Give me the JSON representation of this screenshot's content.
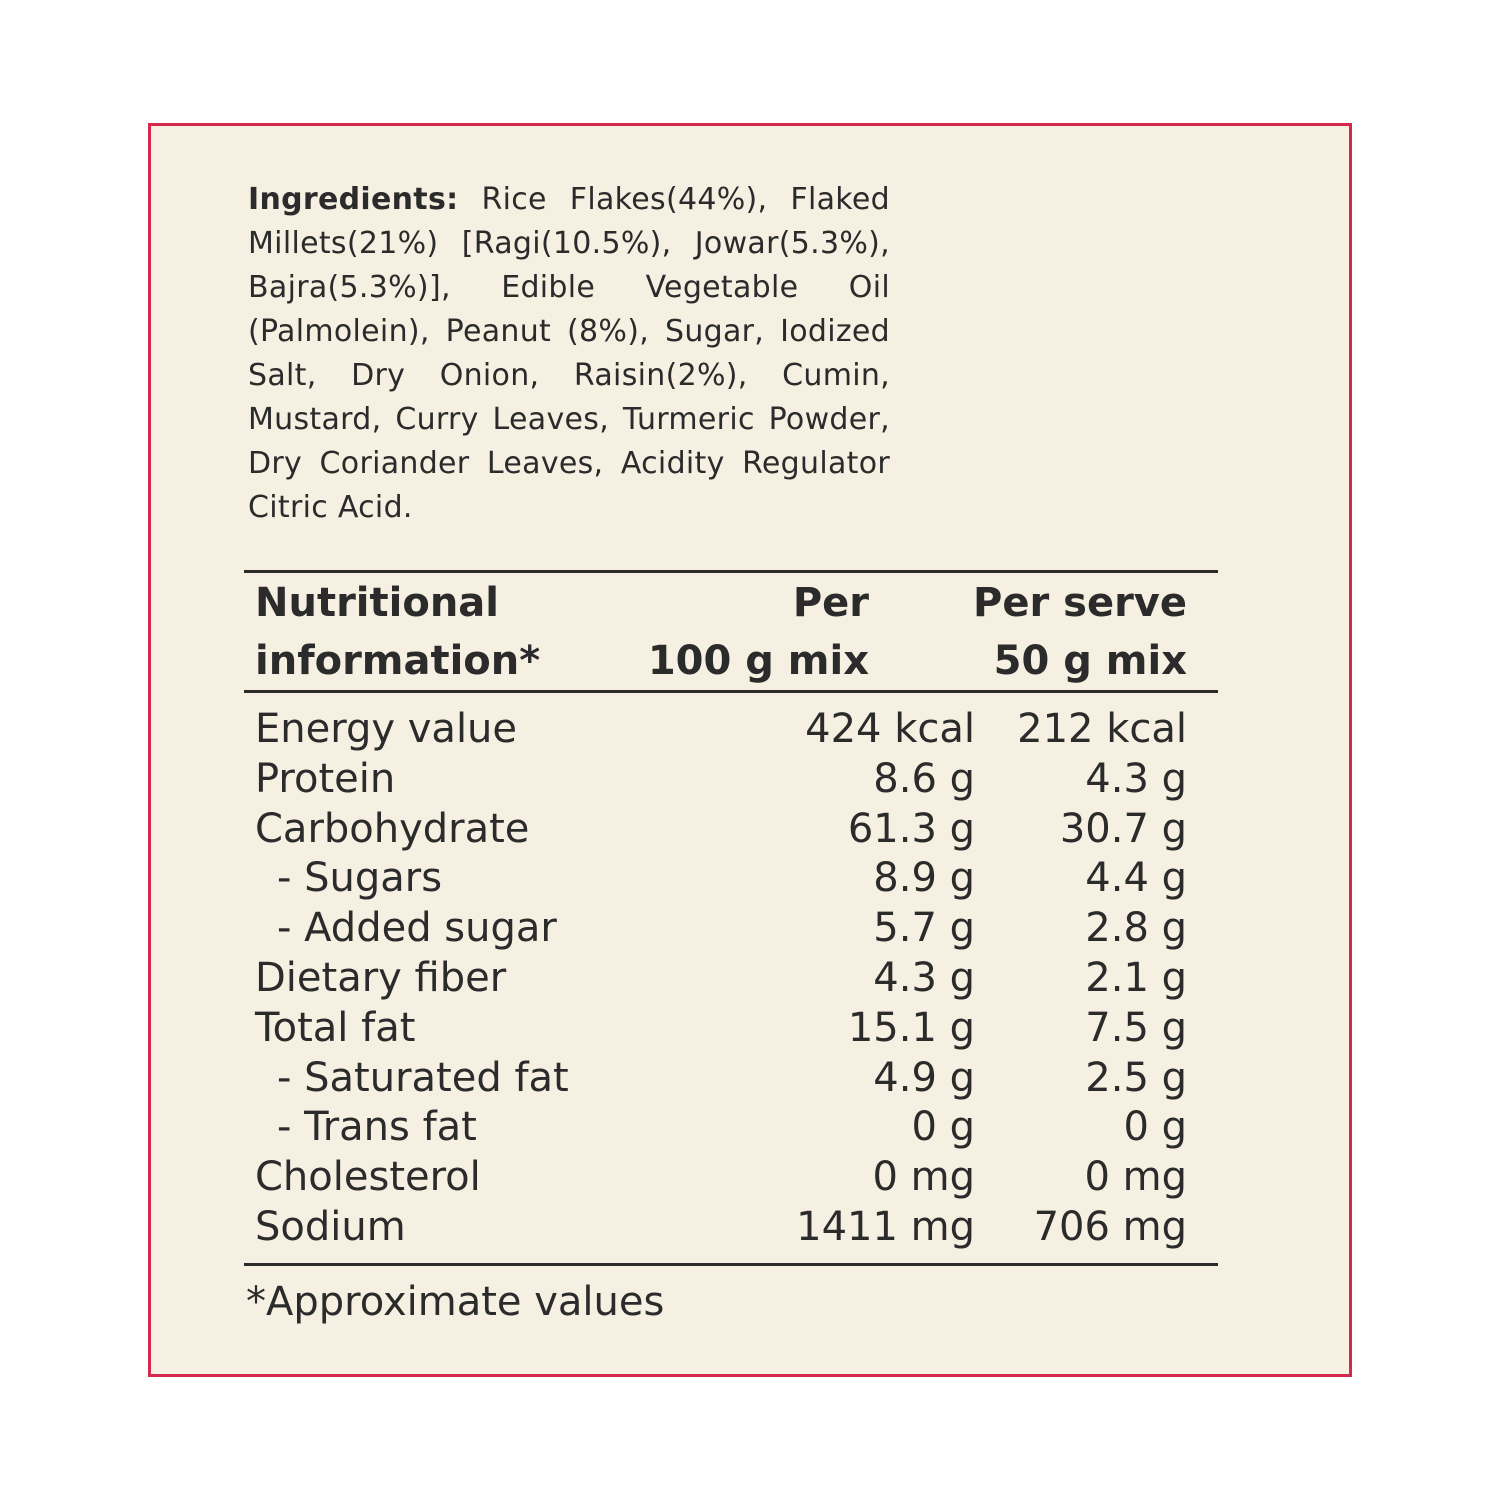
{
  "ingredients": {
    "label": "Ingredients:",
    "text": "Rice Flakes(44%), Flaked Millets(21%) [Ragi(10.5%), Jowar(5.3%), Bajra(5.3%)], Edible Vegetable Oil (Palmolein), Peanut (8%), Sugar, Iodized Salt, Dry Onion, Raisin(2%), Cumin, Mustard, Curry Leaves, Turmeric Powder, Dry Coriander Leaves, Acidity Regulator Citric Acid."
  },
  "nutrition": {
    "header": {
      "label_line1": "Nutritional",
      "label_line2": "information*",
      "per100_line1": "Per",
      "per100_line2": "100 g mix",
      "serve_line1": "Per serve",
      "serve_line2": "50 g mix"
    },
    "rows": [
      {
        "name": "Energy value",
        "per100": "424 kcal",
        "serve": "212 kcal"
      },
      {
        "name": "Protein",
        "per100": "8.6 g",
        "serve": "4.3 g"
      },
      {
        "name": "Carbohydrate",
        "per100": "61.3 g",
        "serve": "30.7 g"
      },
      {
        "name": "- Sugars",
        "per100": "8.9 g",
        "serve": "4.4 g"
      },
      {
        "name": "- Added sugar",
        "per100": "5.7 g",
        "serve": "2.8 g"
      },
      {
        "name": "Dietary fiber",
        "per100": "4.3 g",
        "serve": "2.1 g"
      },
      {
        "name": "Total fat",
        "per100": "15.1 g",
        "serve": "7.5 g"
      },
      {
        "name": "- Saturated fat",
        "per100": "4.9 g",
        "serve": "2.5 g"
      },
      {
        "name": "- Trans fat",
        "per100": "0 g",
        "serve": "0 g"
      },
      {
        "name": "Cholesterol",
        "per100": "0 mg",
        "serve": "0 mg"
      },
      {
        "name": "Sodium",
        "per100": "1411 mg",
        "serve": "706 mg"
      }
    ],
    "footnote": "*Approximate values"
  },
  "colors": {
    "border": "#d4284d",
    "background": "#f6f0e2",
    "text": "#2b2b2b"
  }
}
